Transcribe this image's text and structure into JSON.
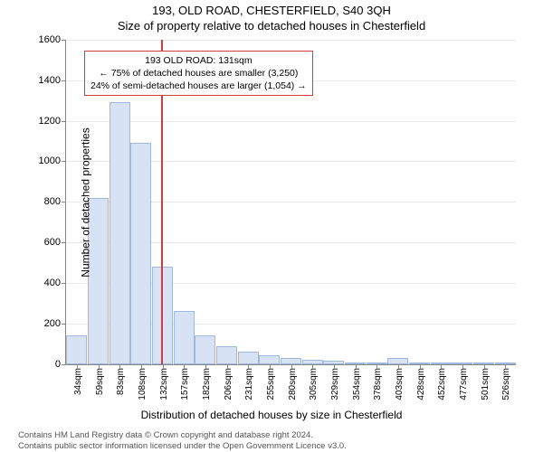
{
  "header": {
    "address": "193, OLD ROAD, CHESTERFIELD, S40 3QH",
    "subtitle": "Size of property relative to detached houses in Chesterfield"
  },
  "chart": {
    "type": "histogram",
    "y_axis_title": "Number of detached properties",
    "x_axis_title": "Distribution of detached houses by size in Chesterfield",
    "ylim_max": 1600,
    "ytick_step": 200,
    "yticks": [
      0,
      200,
      400,
      600,
      800,
      1000,
      1200,
      1400,
      1600
    ],
    "bar_fill": "#d7e3f4",
    "bar_border": "#9fb9dc",
    "grid_color": "#e9e9e9",
    "axis_color": "#888888",
    "background_color": "#ffffff",
    "x_labels": [
      "34sqm",
      "59sqm",
      "83sqm",
      "108sqm",
      "132sqm",
      "157sqm",
      "182sqm",
      "206sqm",
      "231sqm",
      "255sqm",
      "280sqm",
      "305sqm",
      "329sqm",
      "354sqm",
      "378sqm",
      "403sqm",
      "428sqm",
      "452sqm",
      "477sqm",
      "501sqm",
      "526sqm"
    ],
    "values": [
      140,
      820,
      1290,
      1090,
      480,
      260,
      140,
      90,
      60,
      45,
      30,
      20,
      15,
      10,
      10,
      30,
      5,
      3,
      2,
      2,
      2
    ],
    "reference": {
      "x_value_sqm": 131,
      "x_min_sqm": 34,
      "x_step_sqm": 24.6,
      "color": "#d43c3c"
    },
    "annotation": {
      "line1": "193 OLD ROAD: 131sqm",
      "line2": "← 75% of detached houses are smaller (3,250)",
      "line3": "24% of semi-detached houses are larger (1,054) →",
      "border_color": "#d43c3c",
      "bg": "#ffffff",
      "font_size": 10.5
    }
  },
  "footer": {
    "line1": "Contains HM Land Registry data © Crown copyright and database right 2024.",
    "line2": "Contains public sector information licensed under the Open Government Licence v3.0."
  }
}
